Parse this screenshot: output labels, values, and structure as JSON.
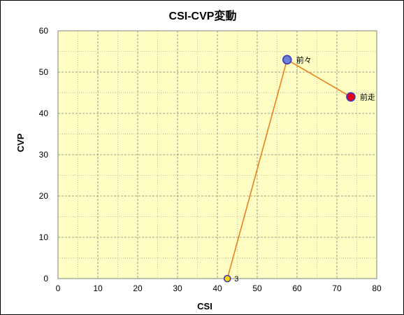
{
  "chart_data": {
    "type": "scatter",
    "title": "CSI-CVP変動",
    "xlabel": "CSI",
    "ylabel": "CVP",
    "xlim": [
      0,
      80
    ],
    "ylim": [
      0,
      60
    ],
    "x_ticks": [
      0,
      10,
      20,
      30,
      40,
      50,
      60,
      70,
      80
    ],
    "y_ticks": [
      0,
      10,
      20,
      30,
      40,
      50,
      60
    ],
    "grid": true,
    "series": [
      {
        "points": [
          {
            "label": "3",
            "x": 42.5,
            "y": 0,
            "color": "#FFD700"
          },
          {
            "label": "前々",
            "x": 57.5,
            "y": 53,
            "color": "#6A7FD6"
          },
          {
            "label": "前走",
            "x": 73.5,
            "y": 44,
            "color": "#E8001A"
          }
        ],
        "line_color": "#F07D1B"
      }
    ],
    "colors": {
      "plot_background": "#FFFFC4",
      "grid": "#808080",
      "marker_edge": "#3A3AB8"
    }
  }
}
